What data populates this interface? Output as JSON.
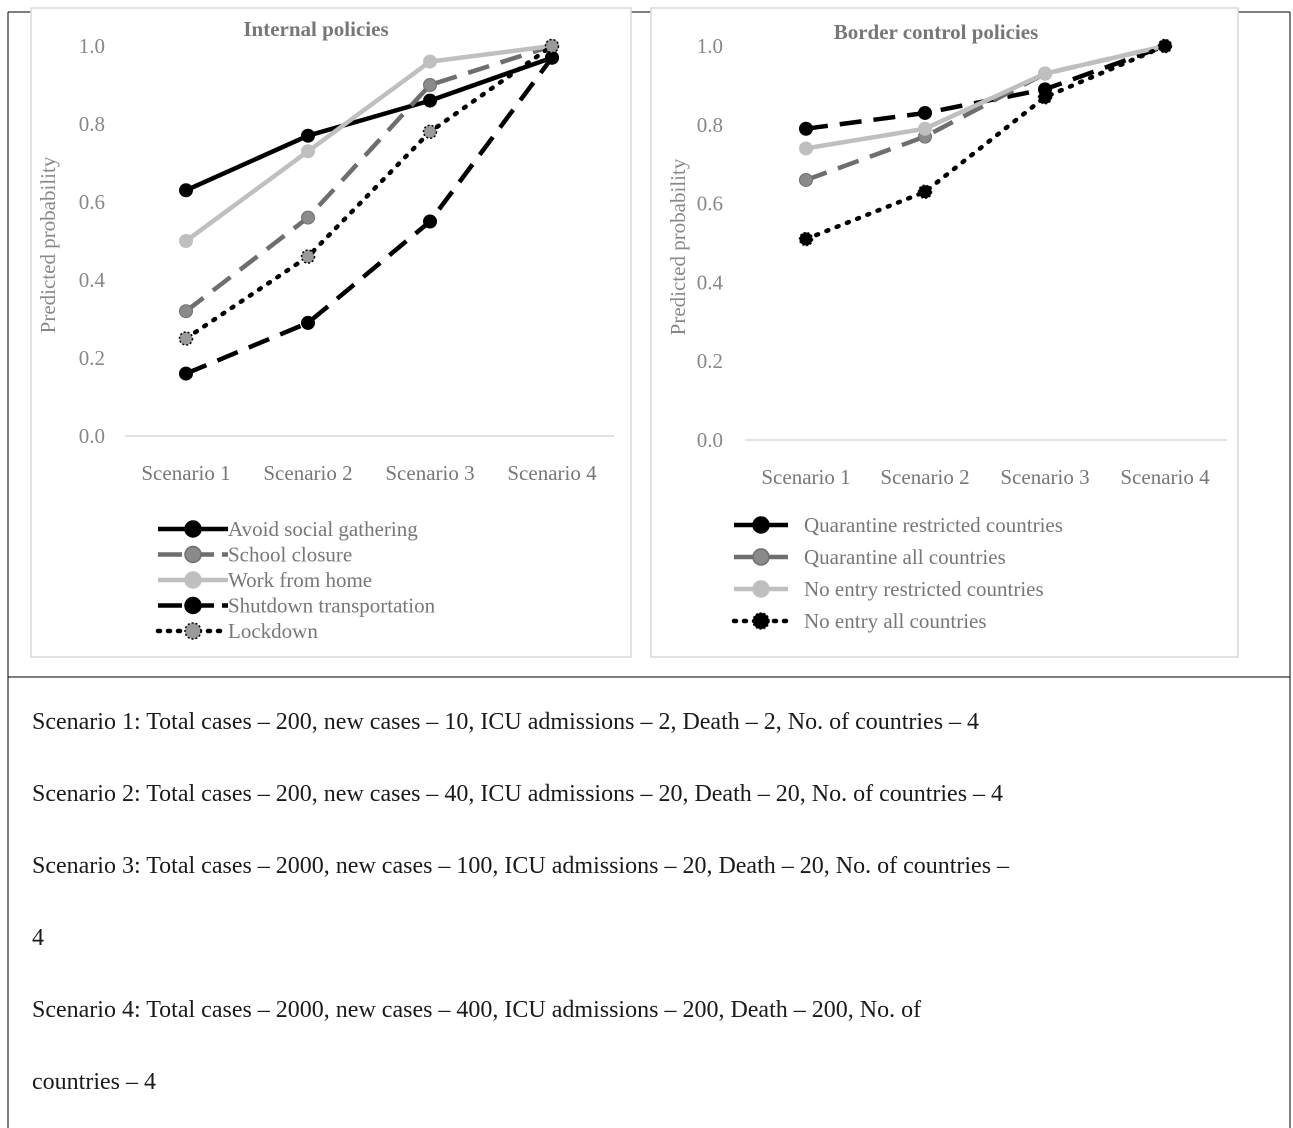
{
  "chart_data": [
    {
      "type": "line",
      "title": "Internal policies",
      "ylabel": "Predicted probability",
      "xlabel": "",
      "categories": [
        "Scenario 1",
        "Scenario 2",
        "Scenario 3",
        "Scenario 4"
      ],
      "ylim": [
        0,
        1.0
      ],
      "yticks": [
        "0.0",
        "0.2",
        "0.4",
        "0.6",
        "0.8",
        "1.0"
      ],
      "grid": false,
      "legend_position": "bottom",
      "series": [
        {
          "name": "Avoid social gathering",
          "values": [
            0.63,
            0.77,
            0.86,
            0.97
          ],
          "color": "#000000",
          "dash": "solid",
          "marker_fill": "#000000"
        },
        {
          "name": "School closure",
          "values": [
            0.32,
            0.56,
            0.9,
            1.0
          ],
          "color": "#6e6e6e",
          "dash": "dashed",
          "marker_fill": "#8a8a8a"
        },
        {
          "name": "Work from home",
          "values": [
            0.5,
            0.73,
            0.96,
            1.0
          ],
          "color": "#bfbfbf",
          "dash": "solid",
          "marker_fill": "#bfbfbf"
        },
        {
          "name": "Shutdown transportation",
          "values": [
            0.16,
            0.29,
            0.55,
            0.97
          ],
          "color": "#000000",
          "dash": "dashed",
          "marker_fill": "#000000"
        },
        {
          "name": "Lockdown",
          "values": [
            0.25,
            0.46,
            0.78,
            1.0
          ],
          "color": "#000000",
          "dash": "dotted",
          "marker_fill": "#9a9a9a"
        }
      ]
    },
    {
      "type": "line",
      "title": "Border control policies",
      "ylabel": "Predicted probability",
      "xlabel": "",
      "categories": [
        "Scenario 1",
        "Scenario 2",
        "Scenario 3",
        "Scenario 4"
      ],
      "ylim": [
        0,
        1.0
      ],
      "yticks": [
        "0.0",
        "0.2",
        "0.4",
        "0.6",
        "0.8",
        "1.0"
      ],
      "grid": false,
      "legend_position": "bottom",
      "series": [
        {
          "name": "Quarantine restricted countries",
          "values": [
            0.79,
            0.83,
            0.89,
            1.0
          ],
          "color": "#000000",
          "dash": "dashed",
          "marker_fill": "#000000"
        },
        {
          "name": "Quarantine all countries",
          "values": [
            0.66,
            0.77,
            0.93,
            1.0
          ],
          "color": "#6e6e6e",
          "dash": "dashed",
          "marker_fill": "#8a8a8a"
        },
        {
          "name": "No entry restricted countries",
          "values": [
            0.74,
            0.79,
            0.93,
            1.0
          ],
          "color": "#bfbfbf",
          "dash": "solid",
          "marker_fill": "#bfbfbf"
        },
        {
          "name": "No entry all countries",
          "values": [
            0.51,
            0.63,
            0.87,
            1.0
          ],
          "color": "#000000",
          "dash": "dotted",
          "marker_fill": "#000000"
        }
      ]
    }
  ],
  "notes": [
    "Scenario 1: Total cases – 200, new cases – 10, ICU admissions – 2, Death – 2, No. of countries – 4",
    "Scenario 2: Total cases – 200, new cases – 40, ICU admissions – 20, Death – 20, No. of countries – 4",
    "Scenario 3: Total cases – 2000, new cases – 100, ICU admissions – 20, Death – 20, No. of countries –",
    "4",
    "Scenario 4: Total cases – 2000, new cases – 400, ICU admissions – 200, Death – 200, No. of",
    "countries – 4"
  ]
}
